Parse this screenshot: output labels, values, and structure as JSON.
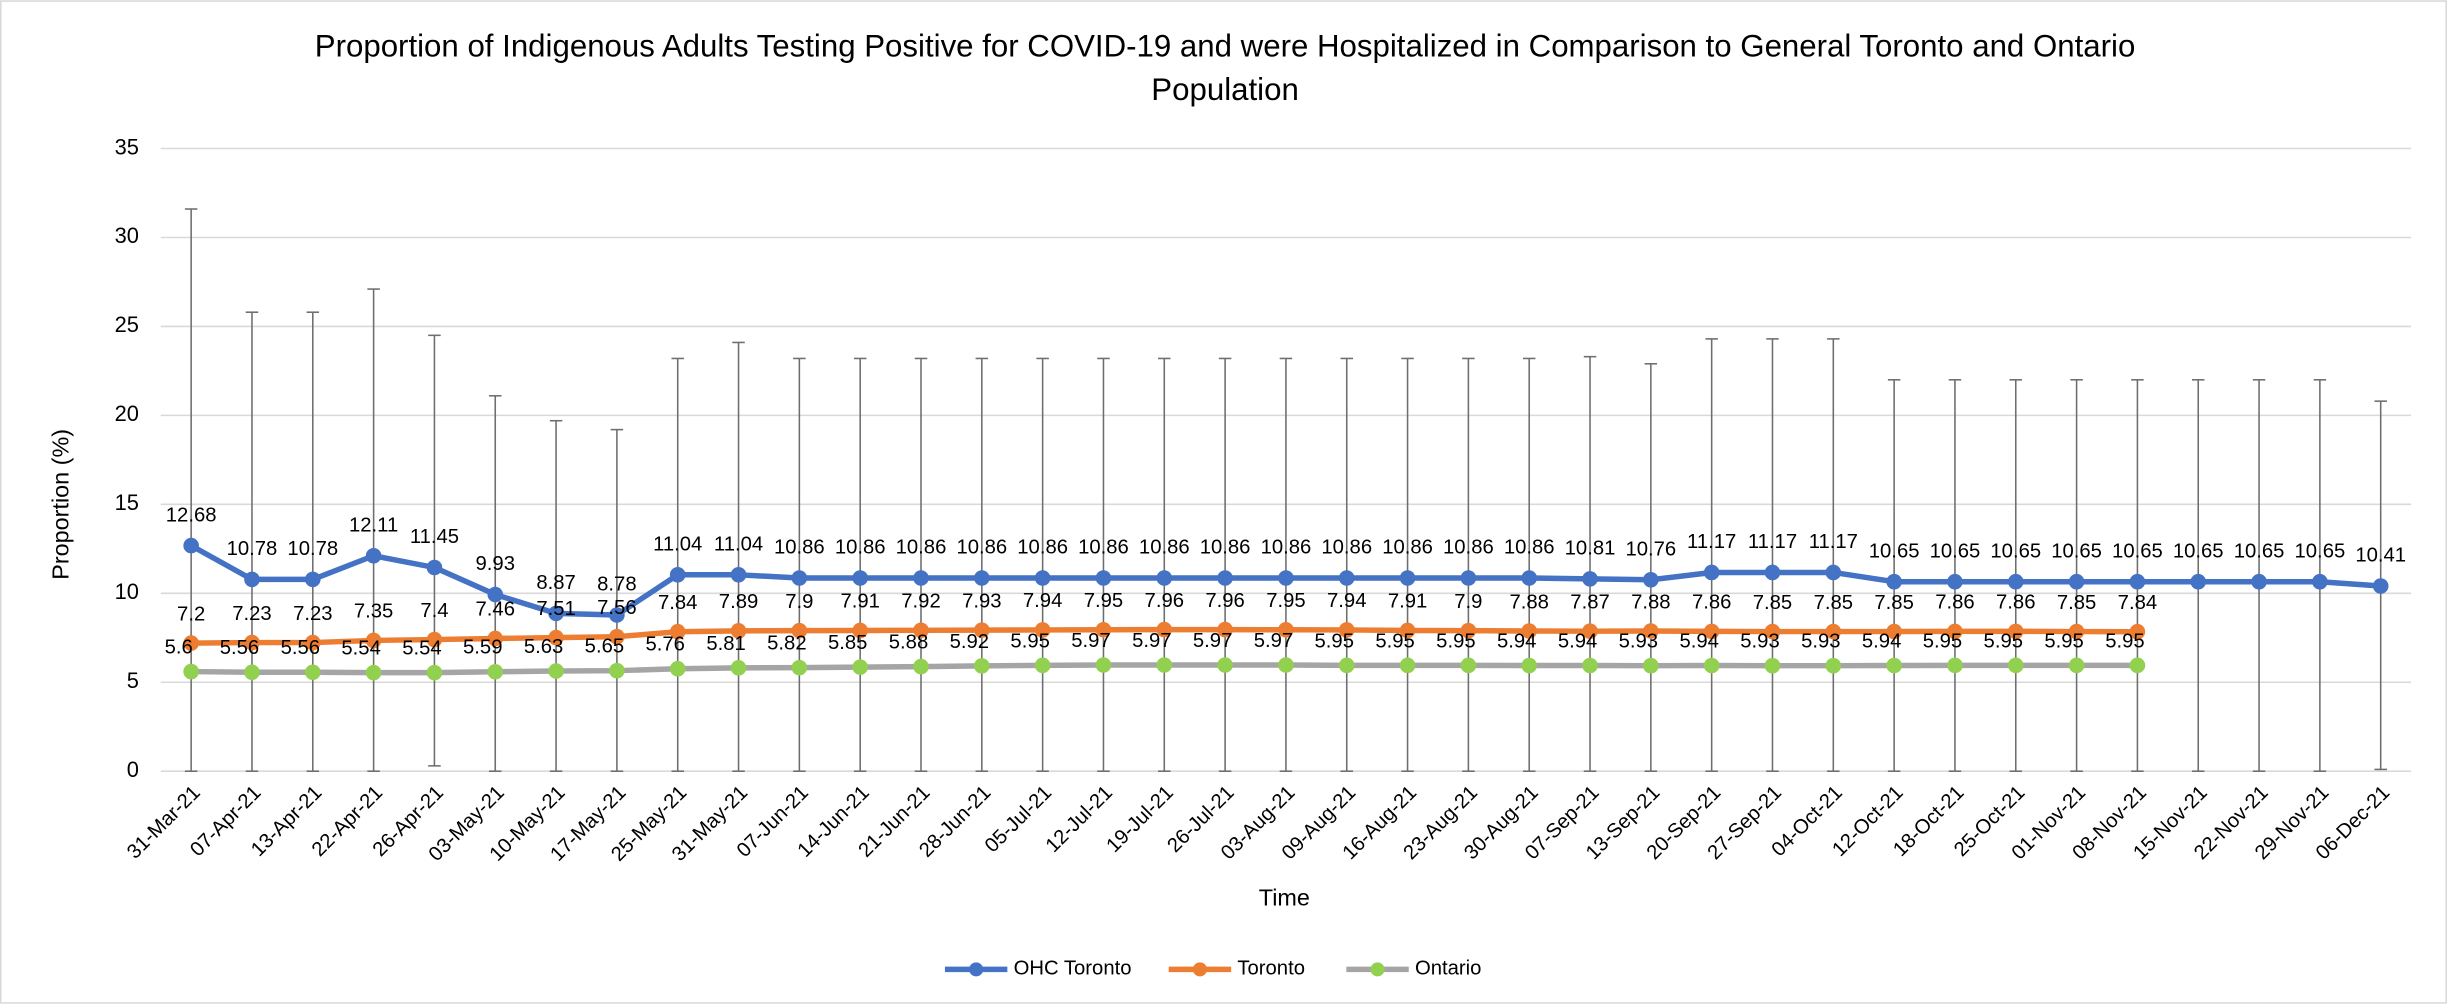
{
  "chart_data": {
    "type": "line",
    "title": "Proportion of Indigenous Adults Testing Positive for COVID-19 and were Hospitalized in Comparison to General Toronto and Ontario Population",
    "x_label": "Time",
    "y_label": "Proportion (%)",
    "categories": [
      "31-Mar-21",
      "07-Apr-21",
      "13-Apr-21",
      "22-Apr-21",
      "26-Apr-21",
      "03-May-21",
      "10-May-21",
      "17-May-21",
      "25-May-21",
      "31-May-21",
      "07-Jun-21",
      "14-Jun-21",
      "21-Jun-21",
      "28-Jun-21",
      "05-Jul-21",
      "12-Jul-21",
      "19-Jul-21",
      "26-Jul-21",
      "03-Aug-21",
      "09-Aug-21",
      "16-Aug-21",
      "23-Aug-21",
      "30-Aug-21",
      "07-Sep-21",
      "13-Sep-21",
      "20-Sep-21",
      "27-Sep-21",
      "04-Oct-21",
      "12-Oct-21",
      "18-Oct-21",
      "25-Oct-21",
      "01-Nov-21",
      "08-Nov-21",
      "15-Nov-21",
      "22-Nov-21",
      "29-Nov-21",
      "06-Dec-21"
    ],
    "series": [
      {
        "name": "OHC Toronto",
        "color": "#4472c4",
        "marker_color": "#4472c4",
        "values": [
          12.68,
          10.78,
          10.78,
          12.11,
          11.45,
          9.93,
          8.87,
          8.78,
          11.04,
          11.04,
          10.86,
          10.86,
          10.86,
          10.86,
          10.86,
          10.86,
          10.86,
          10.86,
          10.86,
          10.86,
          10.86,
          10.86,
          10.86,
          10.81,
          10.76,
          11.17,
          11.17,
          11.17,
          10.65,
          10.65,
          10.65,
          10.65,
          10.65,
          10.65,
          10.65,
          10.65,
          10.41
        ],
        "errors_plus": [
          18.92,
          15.02,
          15.02,
          14.99,
          13.05,
          11.17,
          10.83,
          10.42,
          12.16,
          13.06,
          12.34,
          12.34,
          12.34,
          12.34,
          12.34,
          12.34,
          12.34,
          12.34,
          12.34,
          12.34,
          12.34,
          12.34,
          12.34,
          12.49,
          12.14,
          13.13,
          13.13,
          13.13,
          11.35,
          11.35,
          11.35,
          11.35,
          11.35,
          11.35,
          11.35,
          11.35,
          10.39
        ],
        "errors_minus": [
          12.68,
          10.78,
          10.78,
          12.11,
          11.15,
          9.93,
          8.87,
          8.78,
          11.04,
          11.04,
          10.86,
          10.86,
          10.86,
          10.86,
          10.86,
          10.86,
          10.86,
          10.86,
          10.86,
          10.86,
          10.86,
          10.86,
          10.86,
          10.81,
          10.76,
          11.17,
          11.17,
          11.17,
          10.65,
          10.65,
          10.65,
          10.65,
          10.65,
          10.65,
          10.65,
          10.65,
          10.31
        ]
      },
      {
        "name": "Toronto",
        "color": "#ed7d31",
        "marker_color": "#ed7d31",
        "values": [
          7.2,
          7.23,
          7.23,
          7.35,
          7.4,
          7.46,
          7.51,
          7.56,
          7.84,
          7.89,
          7.9,
          7.91,
          7.92,
          7.93,
          7.94,
          7.95,
          7.96,
          7.96,
          7.95,
          7.94,
          7.91,
          7.9,
          7.88,
          7.87,
          7.88,
          7.86,
          7.85,
          7.85,
          7.85,
          7.86,
          7.86,
          7.85,
          7.84,
          null,
          null,
          null,
          null
        ]
      },
      {
        "name": "Ontario",
        "color": "#a5a5a5",
        "marker_color": "#92d050",
        "values": [
          5.6,
          5.56,
          5.56,
          5.54,
          5.54,
          5.59,
          5.63,
          5.65,
          5.76,
          5.81,
          5.82,
          5.85,
          5.88,
          5.92,
          5.95,
          5.97,
          5.97,
          5.97,
          5.97,
          5.95,
          5.95,
          5.95,
          5.94,
          5.94,
          5.93,
          5.94,
          5.93,
          5.93,
          5.94,
          5.95,
          5.95,
          5.95,
          5.95,
          null,
          null,
          null,
          null
        ]
      }
    ],
    "ylim": [
      0,
      35
    ],
    "yticks": [
      0,
      5,
      10,
      15,
      20,
      25,
      30,
      35
    ],
    "grid": true,
    "legend": "bottom"
  }
}
